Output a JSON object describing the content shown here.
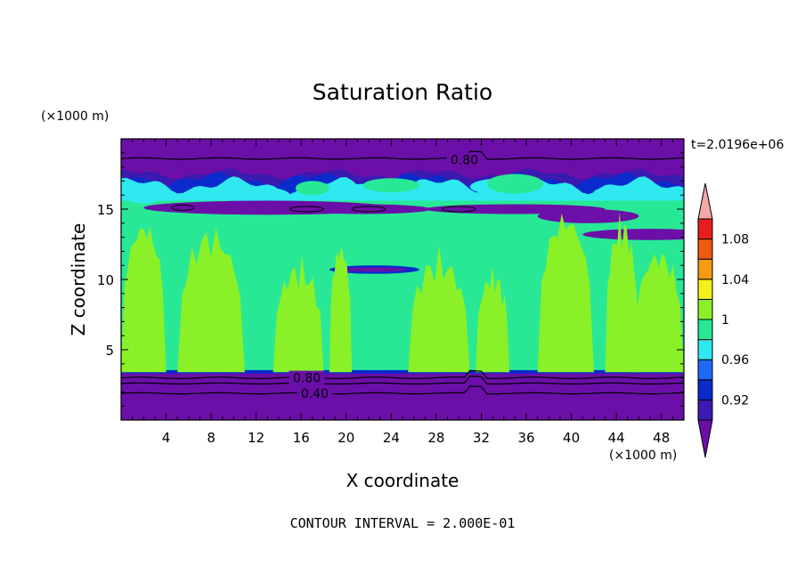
{
  "chart_data": {
    "type": "heatmap",
    "title": "Saturation Ratio",
    "time_label": "t=2.0196e+06",
    "xlabel": "X coordinate",
    "ylabel": "Z coordinate",
    "x_unit_label": "(×1000 m)",
    "y_unit_label": "(×1000 m)",
    "x_range": [
      0,
      50
    ],
    "y_range": [
      0,
      20
    ],
    "x_ticks": [
      4,
      8,
      12,
      16,
      20,
      24,
      28,
      32,
      36,
      40,
      44,
      48
    ],
    "y_ticks": [
      5,
      10,
      15
    ],
    "footer": "CONTOUR INTERVAL = 2.000E-01",
    "contour_labels": [
      {
        "text": "0.80",
        "x": 30.5,
        "z": 18.5
      },
      {
        "text": "0.80",
        "x": 16.5,
        "z": 3.0
      },
      {
        "text": "0.40",
        "x": 17.2,
        "z": 1.9
      }
    ],
    "colorbar": {
      "levels": [
        0.92,
        0.94,
        0.96,
        0.98,
        1,
        1.02,
        1.04,
        1.06,
        1.08,
        1.1
      ],
      "labels": [
        "0.92",
        "0.96",
        "1",
        "1.04",
        "1.08"
      ],
      "colors": [
        "#6b0fa8",
        "#3a1ab0",
        "#0a2bcc",
        "#1f6af5",
        "#2fe8f0",
        "#28e896",
        "#8af028",
        "#f2f21a",
        "#f59a12",
        "#ee5a12",
        "#e81e1e",
        "#f4a8a8"
      ]
    },
    "bands": [
      {
        "z": [
          0,
          3.4
        ],
        "value": "below 0.92"
      },
      {
        "z": [
          3.4,
          16.2
        ],
        "value": "0.98 to 1.02"
      },
      {
        "z": [
          16.2,
          18.0
        ],
        "value": "0.92 to 0.98"
      },
      {
        "z": [
          18.0,
          20.0
        ],
        "value": "below 0.92"
      }
    ]
  }
}
